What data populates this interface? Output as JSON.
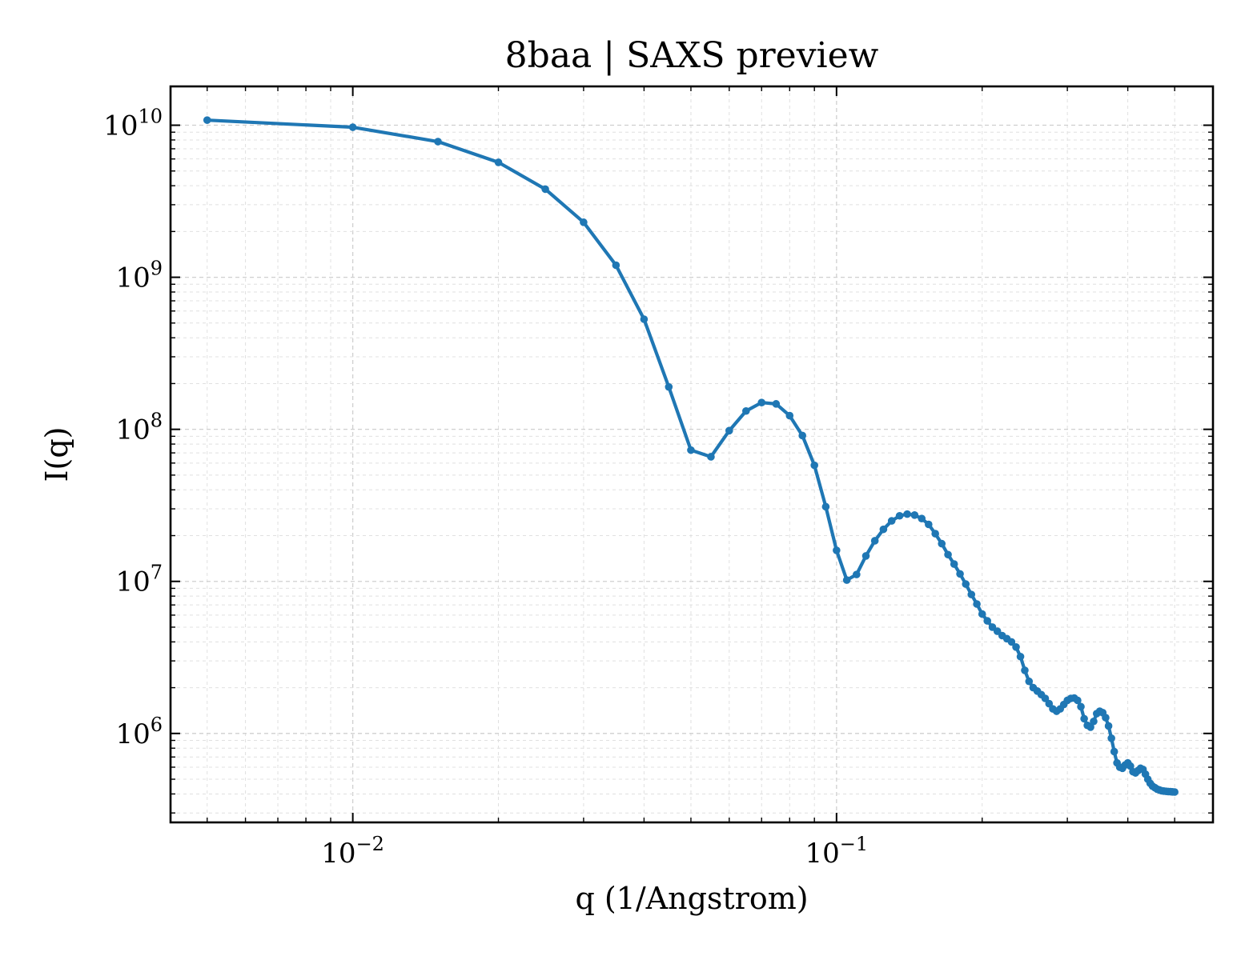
{
  "chart_data": {
    "type": "line",
    "title": "8baa | SAXS preview",
    "xlabel": "q (1/Angstrom)",
    "ylabel": "I(q)",
    "xscale": "log",
    "yscale": "log",
    "xlim": [
      0.0042,
      0.6
    ],
    "ylim": [
      260000,
      18000000000
    ],
    "grid": true,
    "x_ticks": [
      {
        "base": "10",
        "exp": "−2",
        "value": 0.01
      },
      {
        "base": "10",
        "exp": "−1",
        "value": 0.1
      }
    ],
    "y_ticks": [
      {
        "base": "10",
        "exp": "6",
        "value": 1000000
      },
      {
        "base": "10",
        "exp": "7",
        "value": 10000000
      },
      {
        "base": "10",
        "exp": "8",
        "value": 100000000
      },
      {
        "base": "10",
        "exp": "9",
        "value": 1000000000
      },
      {
        "base": "10",
        "exp": "10",
        "value": 10000000000
      }
    ],
    "series": [
      {
        "color": "#1f77b4",
        "marker": "circle",
        "x": [
          0.005,
          0.01,
          0.015,
          0.02,
          0.025,
          0.03,
          0.035,
          0.04,
          0.045,
          0.05,
          0.055,
          0.06,
          0.065,
          0.07,
          0.075,
          0.08,
          0.085,
          0.09,
          0.095,
          0.1,
          0.105,
          0.11,
          0.115,
          0.12,
          0.125,
          0.13,
          0.135,
          0.14,
          0.145,
          0.15,
          0.155,
          0.16,
          0.165,
          0.17,
          0.175,
          0.18,
          0.185,
          0.19,
          0.195,
          0.2,
          0.205,
          0.21,
          0.215,
          0.22,
          0.225,
          0.23,
          0.235,
          0.24,
          0.245,
          0.25,
          0.255,
          0.26,
          0.265,
          0.27,
          0.275,
          0.28,
          0.285,
          0.29,
          0.295,
          0.3,
          0.305,
          0.31,
          0.315,
          0.32,
          0.325,
          0.33,
          0.335,
          0.34,
          0.345,
          0.35,
          0.355,
          0.36,
          0.365,
          0.37,
          0.375,
          0.38,
          0.385,
          0.39,
          0.395,
          0.4,
          0.405,
          0.41,
          0.415,
          0.42,
          0.425,
          0.43,
          0.435,
          0.44,
          0.445,
          0.45,
          0.455,
          0.46,
          0.465,
          0.47,
          0.475,
          0.48,
          0.485,
          0.49,
          0.495,
          0.5
        ],
        "y": [
          10800000000,
          9700000000,
          7800000000,
          5700000000,
          3800000000,
          2300000000,
          1200000000,
          530000000,
          190000000,
          73000000,
          66000000,
          98000000,
          132000000,
          150000000,
          147000000,
          123000000,
          91000000,
          58000000,
          31000000,
          16000000,
          10200000,
          11100000,
          14700000,
          18500000,
          22000000,
          25000000,
          27000000,
          27700000,
          27300000,
          25900000,
          23700000,
          20600000,
          17700000,
          15000000,
          13000000,
          11200000,
          9600000,
          8200000,
          7100000,
          6100000,
          5500000,
          5000000,
          4700000,
          4400000,
          4200000,
          4000000,
          3700000,
          3200000,
          2600000,
          2200000,
          2000000,
          1900000,
          1800000,
          1700000,
          1570000,
          1450000,
          1400000,
          1450000,
          1550000,
          1650000,
          1700000,
          1710000,
          1650000,
          1500000,
          1250000,
          1130000,
          1100000,
          1200000,
          1350000,
          1400000,
          1370000,
          1270000,
          1120000,
          930000,
          760000,
          640000,
          600000,
          590000,
          620000,
          640000,
          610000,
          560000,
          550000,
          570000,
          590000,
          580000,
          540000,
          500000,
          470000,
          450000,
          440000,
          430000,
          425000,
          420000,
          418000,
          416000,
          415000,
          414000,
          413000,
          412000
        ]
      }
    ]
  }
}
